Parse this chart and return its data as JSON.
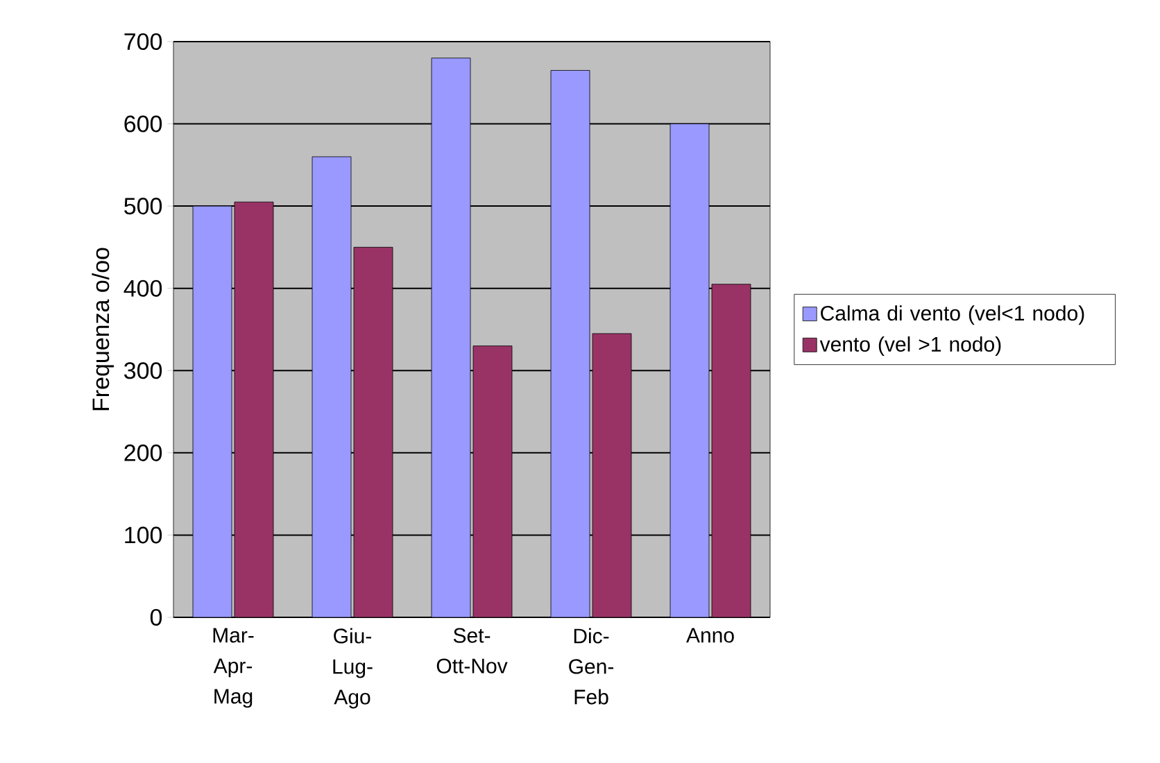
{
  "chart_data": {
    "type": "bar",
    "ylabel": "Frequenza o/oo",
    "categories": [
      "Mar-Apr-Mag",
      "Giu-Lug-Ago",
      "Set-Ott-Nov",
      "Dic-Gen-Feb",
      "Anno"
    ],
    "series": [
      {
        "name": "Calma di vento (vel<1 nodo)",
        "color": "#9999ff",
        "values": [
          500,
          560,
          680,
          665,
          600
        ]
      },
      {
        "name": "vento (vel >1 nodo)",
        "color": "#993366",
        "values": [
          505,
          450,
          330,
          345,
          405
        ]
      }
    ],
    "ylim": [
      0,
      700
    ],
    "yticks": [
      0,
      100,
      200,
      300,
      400,
      500,
      600,
      700
    ],
    "grid": "y",
    "legend": "right"
  }
}
